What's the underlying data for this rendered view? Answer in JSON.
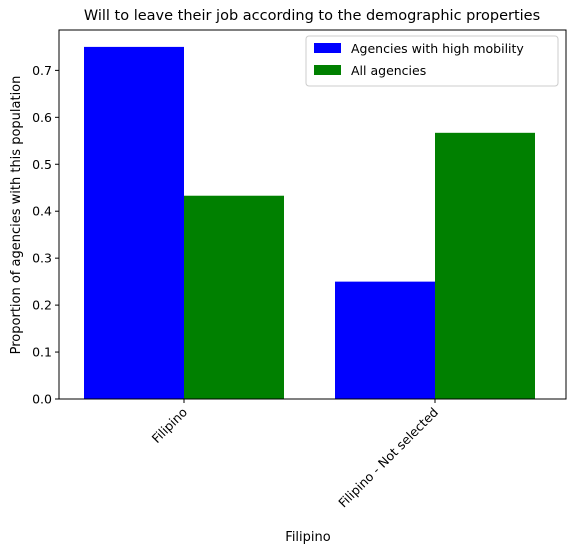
{
  "chart_data": {
    "type": "bar",
    "title": "Will to leave their job according to the demographic properties",
    "xlabel": "Filipino",
    "ylabel": "Proportion of agencies with this population",
    "categories": [
      "Filipino",
      "Filipino - Not selected"
    ],
    "series": [
      {
        "name": "Agencies with high mobility",
        "color": "#0000ff",
        "values": [
          0.75,
          0.25
        ]
      },
      {
        "name": "All agencies",
        "color": "#008000",
        "values": [
          0.433,
          0.567
        ]
      }
    ],
    "ylim": [
      0,
      0.786
    ],
    "yticks": [
      0.0,
      0.1,
      0.2,
      0.3,
      0.4,
      0.5,
      0.6,
      0.7
    ],
    "ytick_labels": [
      "0.0",
      "0.1",
      "0.2",
      "0.3",
      "0.4",
      "0.5",
      "0.6",
      "0.7"
    ],
    "grid": false,
    "legend": "top-right"
  }
}
